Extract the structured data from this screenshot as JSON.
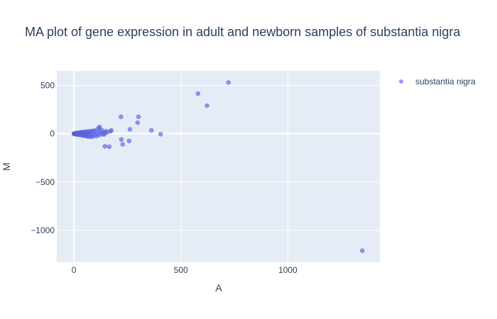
{
  "chart_data": {
    "type": "scatter",
    "title": "MA plot of gene expression in adult and newborn samples of substantia nigra",
    "xlabel": "A",
    "ylabel": "M",
    "xlim": [
      -80,
      1430
    ],
    "ylim": [
      -1330,
      650
    ],
    "xticks": [
      0,
      500,
      1000
    ],
    "xtick_labels": [
      "0",
      "500",
      "1000"
    ],
    "yticks": [
      500,
      0,
      -500,
      -1000
    ],
    "ytick_labels": [
      "500",
      "0",
      "−500",
      "−1000"
    ],
    "grid": true,
    "legend_position": "top-right",
    "series": [
      {
        "name": "substantia nigra",
        "color": "#636efa",
        "points": [
          [
            0,
            0
          ],
          [
            2,
            1
          ],
          [
            3,
            -2
          ],
          [
            5,
            3
          ],
          [
            6,
            -4
          ],
          [
            8,
            2
          ],
          [
            10,
            -5
          ],
          [
            12,
            6
          ],
          [
            14,
            -3
          ],
          [
            16,
            8
          ],
          [
            18,
            -8
          ],
          [
            20,
            5
          ],
          [
            22,
            -10
          ],
          [
            24,
            10
          ],
          [
            26,
            -6
          ],
          [
            28,
            12
          ],
          [
            30,
            -12
          ],
          [
            32,
            4
          ],
          [
            34,
            14
          ],
          [
            36,
            -15
          ],
          [
            38,
            8
          ],
          [
            40,
            16
          ],
          [
            42,
            -18
          ],
          [
            44,
            2
          ],
          [
            46,
            18
          ],
          [
            48,
            -20
          ],
          [
            50,
            10
          ],
          [
            52,
            -8
          ],
          [
            54,
            20
          ],
          [
            56,
            -22
          ],
          [
            58,
            6
          ],
          [
            60,
            -25
          ],
          [
            62,
            14
          ],
          [
            64,
            22
          ],
          [
            66,
            -28
          ],
          [
            68,
            -12
          ],
          [
            70,
            18
          ],
          [
            72,
            -30
          ],
          [
            74,
            25
          ],
          [
            76,
            -15
          ],
          [
            80,
            10
          ],
          [
            84,
            -32
          ],
          [
            86,
            28
          ],
          [
            90,
            -20
          ],
          [
            92,
            30
          ],
          [
            96,
            -10
          ],
          [
            100,
            22
          ],
          [
            104,
            -25
          ],
          [
            108,
            45
          ],
          [
            112,
            8
          ],
          [
            116,
            -15
          ],
          [
            118,
            60
          ],
          [
            120,
            70
          ],
          [
            124,
            20
          ],
          [
            128,
            -5
          ],
          [
            132,
            35
          ],
          [
            136,
            10
          ],
          [
            140,
            -8
          ],
          [
            145,
            5
          ],
          [
            150,
            25
          ],
          [
            155,
            15
          ],
          [
            170,
            25
          ],
          [
            175,
            35
          ],
          [
            145,
            -130
          ],
          [
            165,
            -135
          ],
          [
            220,
            175
          ],
          [
            222,
            -60
          ],
          [
            228,
            -110
          ],
          [
            258,
            -75
          ],
          [
            262,
            45
          ],
          [
            298,
            115
          ],
          [
            302,
            175
          ],
          [
            362,
            35
          ],
          [
            405,
            -5
          ],
          [
            580,
            415
          ],
          [
            622,
            290
          ],
          [
            722,
            530
          ],
          [
            1348,
            -1210
          ]
        ]
      }
    ]
  }
}
